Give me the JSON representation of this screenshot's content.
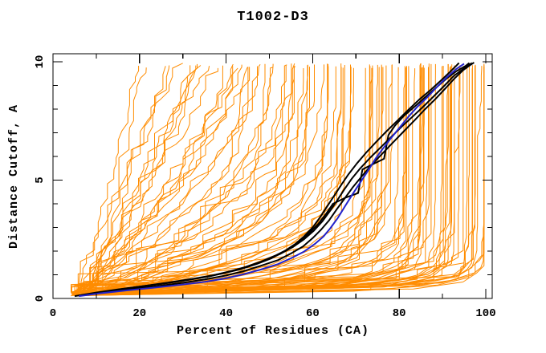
{
  "chart_data": {
    "type": "line",
    "title": "T1002-D3",
    "xlabel": "Percent of Residues (CA)",
    "ylabel": "Distance Cutoff, A",
    "xlim": [
      0,
      101.5
    ],
    "ylim": [
      0,
      10.35
    ],
    "x_major_ticks": [
      0,
      20,
      40,
      60,
      80,
      100
    ],
    "x_minor_ticks": [
      10,
      30,
      50,
      70,
      90
    ],
    "y_major_ticks": [
      0,
      5,
      10
    ],
    "y_minor_ticks": [
      1,
      2,
      3,
      4,
      6,
      7,
      8,
      9
    ],
    "grid": false,
    "legend": null,
    "colors": {
      "ensemble": "#ff8c00",
      "highlight": "#2222cc",
      "selected": "#000000",
      "frame": "#000000",
      "background": "#ffffff"
    },
    "series": [
      {
        "name": "highlight-model-blue",
        "color": "#2222cc",
        "width": 2,
        "points": [
          [
            6,
            0.1
          ],
          [
            11,
            0.22
          ],
          [
            17,
            0.34
          ],
          [
            23,
            0.45
          ],
          [
            29,
            0.57
          ],
          [
            35,
            0.7
          ],
          [
            40,
            0.85
          ],
          [
            44,
            1.02
          ],
          [
            48,
            1.22
          ],
          [
            52,
            1.45
          ],
          [
            55,
            1.7
          ],
          [
            58,
            1.98
          ],
          [
            60.5,
            2.3
          ],
          [
            62.5,
            2.62
          ],
          [
            64,
            2.95
          ],
          [
            65.8,
            3.4
          ],
          [
            67.5,
            3.9
          ],
          [
            69.2,
            4.4
          ],
          [
            71,
            4.9
          ],
          [
            72.8,
            5.4
          ],
          [
            74.5,
            5.9
          ],
          [
            76.3,
            6.35
          ],
          [
            78,
            6.75
          ],
          [
            80,
            7.2
          ],
          [
            82,
            7.65
          ],
          [
            84.2,
            8.1
          ],
          [
            86.5,
            8.5
          ],
          [
            88.8,
            8.95
          ],
          [
            91,
            9.35
          ],
          [
            93.2,
            9.7
          ],
          [
            95,
            9.92
          ]
        ]
      },
      {
        "name": "selected-model-black-1",
        "color": "#000000",
        "width": 2,
        "points": [
          [
            5,
            0.1
          ],
          [
            10,
            0.25
          ],
          [
            15,
            0.38
          ],
          [
            20,
            0.5
          ],
          [
            25,
            0.62
          ],
          [
            30,
            0.75
          ],
          [
            35,
            0.9
          ],
          [
            39,
            1.05
          ],
          [
            43,
            1.22
          ],
          [
            47,
            1.45
          ],
          [
            50.5,
            1.7
          ],
          [
            53.5,
            2.0
          ],
          [
            56,
            2.3
          ],
          [
            58,
            2.62
          ],
          [
            60,
            3.0
          ],
          [
            61.8,
            3.45
          ],
          [
            63.4,
            3.9
          ],
          [
            65,
            4.35
          ],
          [
            66.6,
            4.8
          ],
          [
            68.3,
            5.25
          ],
          [
            70.2,
            5.7
          ],
          [
            72.3,
            6.15
          ],
          [
            74.6,
            6.6
          ],
          [
            77,
            7.05
          ],
          [
            79.5,
            7.5
          ],
          [
            82,
            7.95
          ],
          [
            84.6,
            8.4
          ],
          [
            87.2,
            8.8
          ],
          [
            89.6,
            9.2
          ],
          [
            91.6,
            9.55
          ],
          [
            93,
            9.8
          ],
          [
            93.8,
            9.95
          ]
        ]
      },
      {
        "name": "selected-model-black-2",
        "color": "#000000",
        "width": 2,
        "points": [
          [
            6,
            0.12
          ],
          [
            11,
            0.26
          ],
          [
            16,
            0.4
          ],
          [
            21,
            0.52
          ],
          [
            26,
            0.64
          ],
          [
            31,
            0.78
          ],
          [
            36,
            0.93
          ],
          [
            40,
            1.1
          ],
          [
            44,
            1.3
          ],
          [
            48,
            1.55
          ],
          [
            51.5,
            1.82
          ],
          [
            54.5,
            2.1
          ],
          [
            57,
            2.42
          ],
          [
            59.3,
            2.78
          ],
          [
            61.3,
            3.15
          ],
          [
            63,
            3.55
          ],
          [
            64.7,
            4.0
          ],
          [
            67.5,
            4.25
          ],
          [
            70.5,
            4.45
          ],
          [
            71,
            4.95
          ],
          [
            71.5,
            5.45
          ],
          [
            74,
            5.68
          ],
          [
            76.5,
            5.9
          ],
          [
            77,
            6.4
          ],
          [
            77.5,
            6.9
          ],
          [
            79,
            7.3
          ],
          [
            81,
            7.7
          ],
          [
            83.5,
            8.1
          ],
          [
            86,
            8.5
          ],
          [
            88.5,
            8.9
          ],
          [
            91,
            9.3
          ],
          [
            93.2,
            9.6
          ],
          [
            95.3,
            9.82
          ],
          [
            96.2,
            9.95
          ]
        ]
      },
      {
        "name": "selected-model-black-3",
        "color": "#000000",
        "width": 2,
        "points": [
          [
            7,
            0.14
          ],
          [
            12,
            0.28
          ],
          [
            17,
            0.42
          ],
          [
            22,
            0.55
          ],
          [
            27,
            0.68
          ],
          [
            32,
            0.82
          ],
          [
            37,
            0.98
          ],
          [
            41,
            1.15
          ],
          [
            45,
            1.35
          ],
          [
            49,
            1.6
          ],
          [
            52.5,
            1.88
          ],
          [
            55.5,
            2.18
          ],
          [
            58,
            2.5
          ],
          [
            60.2,
            2.85
          ],
          [
            62.2,
            3.25
          ],
          [
            64,
            3.7
          ],
          [
            65.7,
            4.15
          ],
          [
            67.3,
            4.6
          ],
          [
            69,
            5.05
          ],
          [
            71,
            5.5
          ],
          [
            73.3,
            5.95
          ],
          [
            75.8,
            6.4
          ],
          [
            78.3,
            6.85
          ],
          [
            80.8,
            7.3
          ],
          [
            83.3,
            7.72
          ],
          [
            85.8,
            8.15
          ],
          [
            88.2,
            8.58
          ],
          [
            90.5,
            9.0
          ],
          [
            92.6,
            9.4
          ],
          [
            94.8,
            9.7
          ],
          [
            96.8,
            9.95
          ]
        ]
      },
      {
        "name": "selected-model-black-4",
        "color": "#000000",
        "width": 2,
        "points": [
          [
            6,
            0.12
          ],
          [
            12,
            0.27
          ],
          [
            18,
            0.4
          ],
          [
            24,
            0.52
          ],
          [
            30,
            0.66
          ],
          [
            35,
            0.8
          ],
          [
            40,
            0.97
          ],
          [
            44,
            1.15
          ],
          [
            48,
            1.38
          ],
          [
            52,
            1.62
          ],
          [
            55,
            1.9
          ],
          [
            57.8,
            2.2
          ],
          [
            60,
            2.55
          ],
          [
            62,
            2.92
          ],
          [
            63.8,
            3.3
          ],
          [
            65.5,
            3.75
          ],
          [
            67.3,
            4.2
          ],
          [
            69.2,
            4.68
          ],
          [
            71.3,
            5.15
          ],
          [
            73.5,
            5.62
          ],
          [
            76,
            6.1
          ],
          [
            78.5,
            6.58
          ],
          [
            81,
            7.05
          ],
          [
            83.5,
            7.52
          ],
          [
            86,
            8.0
          ],
          [
            88.5,
            8.45
          ],
          [
            90.8,
            8.9
          ],
          [
            92.8,
            9.3
          ],
          [
            94.8,
            9.65
          ],
          [
            96.3,
            9.85
          ],
          [
            97.3,
            9.97
          ]
        ]
      }
    ],
    "ensemble": {
      "name": "all-models-orange",
      "color": "#ff8c00",
      "width": 1,
      "count": 100,
      "seed": 1002,
      "x_start_range": [
        4,
        8.5
      ],
      "x_end_range": [
        16,
        99.5
      ],
      "y_start_range": [
        0.1,
        0.28
      ],
      "y_end_range": [
        9.72,
        9.94
      ],
      "quality_bias_exponent": 0.6,
      "shape_rule": "x(y) = xs + (xe - xs) * (1 - (1 - y/10)^m)",
      "m_rule": "m = 1 + 40*q^4, jittered",
      "step_y": [
        0.18,
        0.4
      ],
      "plateau_probability": 0.22,
      "x_jitter": 2.4
    }
  }
}
